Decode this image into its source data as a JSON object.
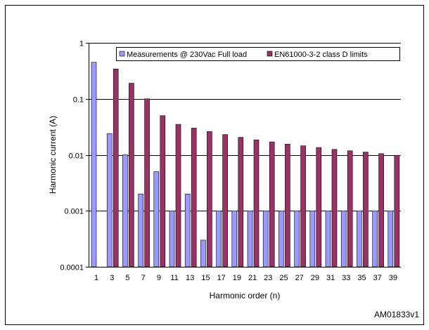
{
  "chart_data": {
    "type": "bar",
    "xlabel": "Harmonic order (n)",
    "ylabel": "Harmonic current (A)",
    "yscale": "log",
    "ylim": [
      0.0001,
      1
    ],
    "yticks": [
      "0.0001",
      "0.001",
      "0.01",
      "0.1",
      "1"
    ],
    "grid": "horizontal",
    "legend_placement": "top",
    "categories": [
      "1",
      "3",
      "5",
      "7",
      "9",
      "11",
      "13",
      "15",
      "17",
      "19",
      "21",
      "23",
      "25",
      "27",
      "29",
      "31",
      "33",
      "35",
      "37",
      "39"
    ],
    "series": [
      {
        "name": "Measurements @ 230Vac Full load",
        "color": "#9999ff",
        "values": [
          0.45,
          0.024,
          0.01,
          0.002,
          0.005,
          0.001,
          0.002,
          0.0003,
          0.001,
          0.001,
          0.001,
          0.001,
          0.001,
          0.001,
          0.001,
          0.001,
          0.001,
          0.001,
          0.001,
          0.001
        ]
      },
      {
        "name": "EN61000-3-2 class D limits",
        "color": "#993366",
        "values": [
          null,
          0.34,
          0.19,
          0.1,
          0.05,
          0.035,
          0.03,
          0.026,
          0.023,
          0.0205,
          0.0185,
          0.017,
          0.0155,
          0.0145,
          0.0135,
          0.0125,
          0.0118,
          0.0112,
          0.0105,
          0.0098
        ]
      }
    ]
  },
  "figure_ref": "AM01833v1"
}
